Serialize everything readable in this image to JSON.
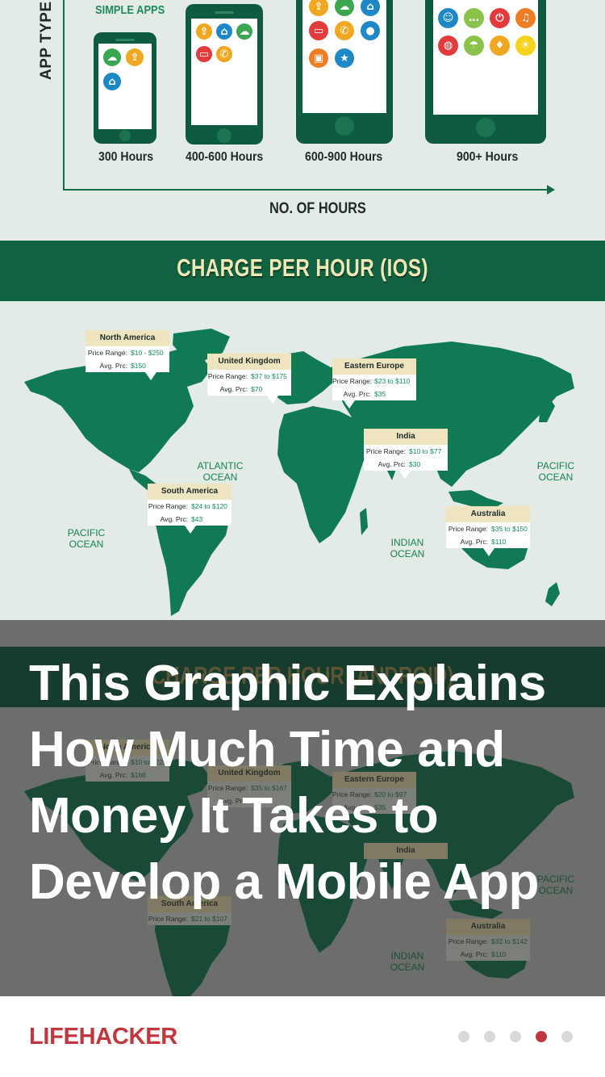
{
  "chart": {
    "y_axis_label": "APP TYPE",
    "x_axis_label": "NO. OF HOURS",
    "category_label": "SIMPLE APPS",
    "hour_labels": [
      "300 Hours",
      "400-600 Hours",
      "600-900 Hours",
      "900+ Hours"
    ]
  },
  "ios_section": {
    "title": "CHARGE PER HOUR (IOS)",
    "oceans": {
      "atlantic": "ATLANTIC\nOCEAN",
      "pacific_right": "PACIFIC\nOCEAN",
      "pacific_left": "PACIFIC\nOCEAN",
      "indian": "INDIAN\nOCEAN"
    },
    "regions": [
      {
        "name": "North America",
        "range_label": "Price Range:",
        "range": "$10 - $250",
        "avg_label": "Avg. Prc:",
        "avg": "$150"
      },
      {
        "name": "United Kingdom",
        "range_label": "Price Range:",
        "range": "$37 to $175",
        "avg_label": "Avg. Prc:",
        "avg": "$70"
      },
      {
        "name": "Eastern Europe",
        "range_label": "Price Range:",
        "range": "$23 to $110",
        "avg_label": "Avg. Prc:",
        "avg": "$35"
      },
      {
        "name": "India",
        "range_label": "Price Range:",
        "range": "$10 to $77",
        "avg_label": "Avg. Prc:",
        "avg": "$30"
      },
      {
        "name": "South America",
        "range_label": "Price Range:",
        "range": "$24 to $120",
        "avg_label": "Avg. Prc:",
        "avg": "$43"
      },
      {
        "name": "Australia",
        "range_label": "Price Range:",
        "range": "$35 to $150",
        "avg_label": "Avg. Prc:",
        "avg": "$110"
      }
    ]
  },
  "android_section": {
    "title": "CHARGE PER HOUR (ANDROID)",
    "oceans": {
      "pacific_right": "PACIFIC\nOCEAN",
      "indian": "INDIAN\nOCEAN",
      "atlantic_partial": "ATLANTIC\nOCEAN",
      "pacific_left": "PACIFIC\nOCEAN"
    },
    "regions": [
      {
        "name": "North America",
        "range_label": "Price Range:",
        "range": "$10 to $225",
        "avg_label": "Avg. Prc:",
        "avg": "$168"
      },
      {
        "name": "United Kingdom",
        "range_label": "Price Range:",
        "range": "$35 to $167",
        "avg_label": "Avg. Prc:",
        "avg": "$68"
      },
      {
        "name": "Eastern Europe",
        "range_label": "Price Range:",
        "range": "$20 to $97",
        "avg_label": "Avg. Prc:",
        "avg": "$35"
      },
      {
        "name": "India",
        "range_label": "Price Range:",
        "range": "",
        "avg_label": "Avg. Prc:",
        "avg": ""
      },
      {
        "name": "South America",
        "range_label": "Price Range:",
        "range": "$21 to $107",
        "avg_label": "Avg. Prc:",
        "avg": ""
      },
      {
        "name": "Australia",
        "range_label": "Price Range:",
        "range": "$32 to $142",
        "avg_label": "Avg. Prc:",
        "avg": "$110"
      }
    ]
  },
  "headline": "This Graphic Explains How Much Time and Money It Takes to Develop a Mobile App",
  "footer": {
    "brand": "LIFEHACKER",
    "pager": {
      "count": 5,
      "active_index": 3
    }
  },
  "colors": {
    "brand_red": "#c0383f",
    "map_green": "#0f7a53",
    "banner_green": "#0f6341",
    "banner_text": "#f1e7b6"
  }
}
